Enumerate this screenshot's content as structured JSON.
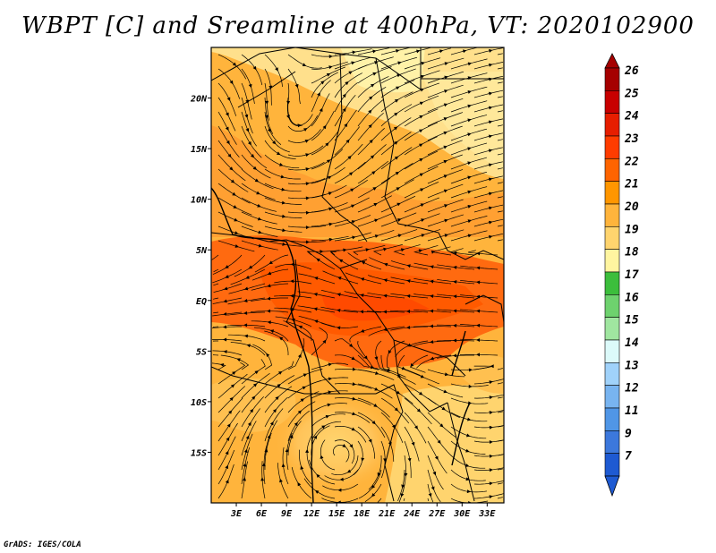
{
  "title": "WBPT [C] and Sreamline at 400hPa, VT: 2020102900",
  "credit": "GrADS: IGES/COLA",
  "map": {
    "lon_range": [
      0,
      35
    ],
    "lat_range": [
      -20,
      25
    ],
    "lon_ticks": [
      "3E",
      "6E",
      "9E",
      "12E",
      "15E",
      "18E",
      "21E",
      "24E",
      "27E",
      "30E",
      "33E"
    ],
    "lon_tick_values": [
      3,
      6,
      9,
      12,
      15,
      18,
      21,
      24,
      27,
      30,
      33
    ],
    "lat_ticks": [
      "20N",
      "15N",
      "10N",
      "5N",
      "EQ",
      "5S",
      "10S",
      "15S"
    ],
    "lat_tick_values": [
      20,
      15,
      10,
      5,
      0,
      -5,
      -10,
      -15
    ]
  },
  "colorbar": {
    "labels": [
      "26",
      "25",
      "24",
      "23",
      "22",
      "21",
      "20",
      "19",
      "18",
      "17",
      "16",
      "15",
      "14",
      "13",
      "12",
      "11",
      "9",
      "7"
    ],
    "colors": [
      "#a50000",
      "#c80000",
      "#e61e00",
      "#ff3c00",
      "#ff6400",
      "#ff9600",
      "#ffb43c",
      "#ffd46e",
      "#fff5a0",
      "#3cbe3c",
      "#6ed26e",
      "#a0e6a0",
      "#dcfafa",
      "#a0d2fa",
      "#78b4f0",
      "#5096e6",
      "#3c78dc",
      "#1e5ad2"
    ],
    "top_color": "#a50000",
    "bottom_color": "#1e5ad2"
  }
}
